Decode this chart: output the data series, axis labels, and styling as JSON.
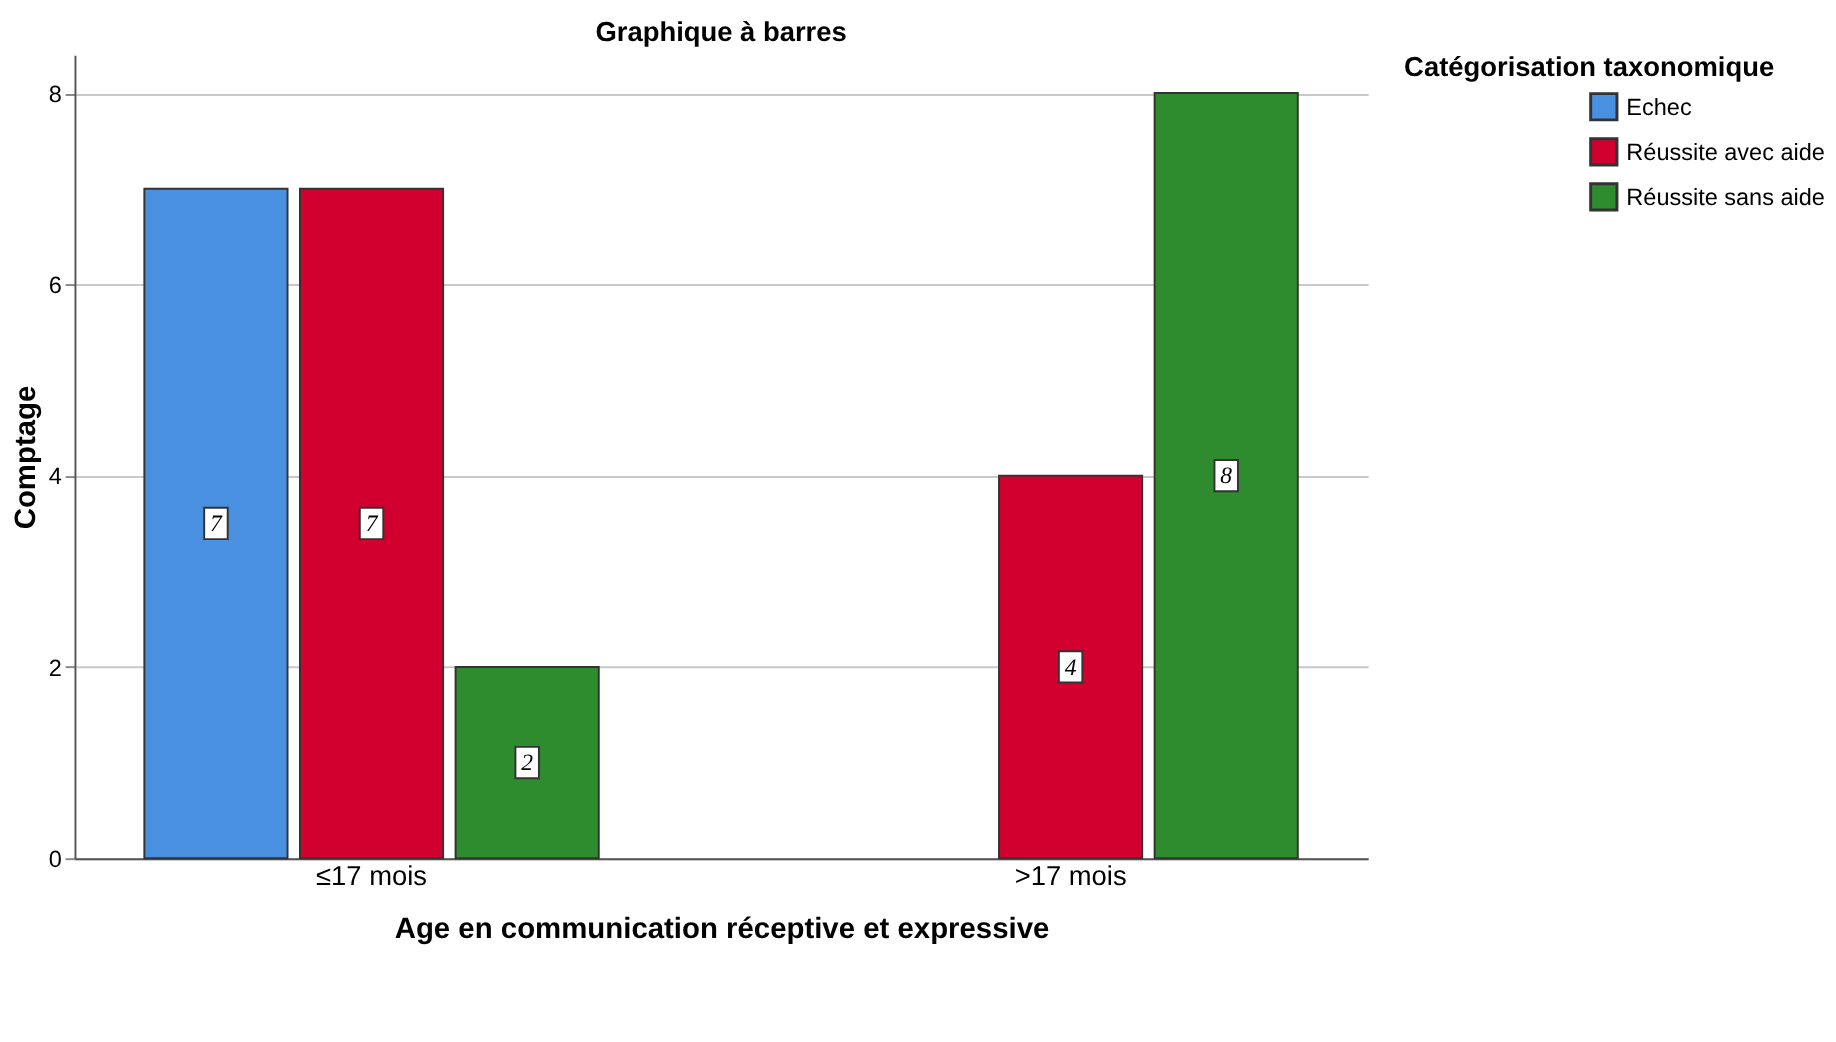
{
  "chart_data": {
    "type": "bar",
    "title": "Graphique à barres",
    "xlabel": "Age en communication réceptive et  expressive",
    "ylabel": "Comptage",
    "legend_title": "Catégorisation taxonomique",
    "categories": [
      "≤17 mois",
      ">17 mois"
    ],
    "series": [
      {
        "name": "Echec",
        "color": "#4a90e0",
        "values": [
          7,
          null
        ]
      },
      {
        "name": "Réussite avec aide",
        "color": "#d1002e",
        "values": [
          7,
          4
        ]
      },
      {
        "name": "Réussite sans aide",
        "color": "#2e8b2e",
        "values": [
          2,
          8
        ]
      }
    ],
    "ylim": [
      0,
      8.4
    ],
    "yticks": [
      0,
      2,
      4,
      6,
      8
    ],
    "grid": "y",
    "legend": "top right",
    "data_labels": true
  }
}
